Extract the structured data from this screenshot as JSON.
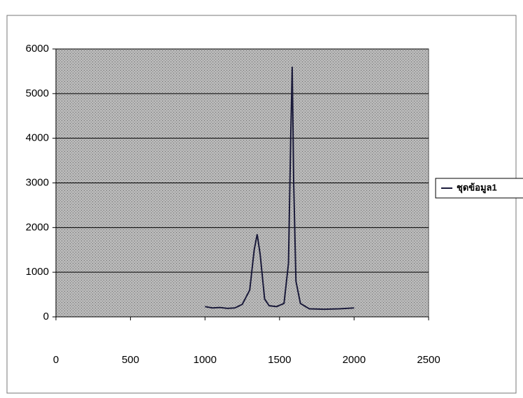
{
  "chart_data": {
    "type": "line",
    "x": [
      1000,
      1050,
      1100,
      1150,
      1200,
      1250,
      1300,
      1330,
      1350,
      1370,
      1400,
      1430,
      1480,
      1530,
      1560,
      1575,
      1585,
      1595,
      1610,
      1640,
      1700,
      1800,
      1900,
      2000
    ],
    "series": [
      {
        "name": "ชุดข้อมูล1",
        "color": "#1a1a3a",
        "values": [
          230,
          200,
          210,
          190,
          200,
          280,
          600,
          1500,
          1850,
          1400,
          400,
          250,
          230,
          300,
          1200,
          4000,
          5600,
          3000,
          800,
          300,
          180,
          170,
          180,
          200
        ]
      }
    ],
    "xlim": [
      0,
      2500
    ],
    "xticks": [
      0,
      500,
      1000,
      1500,
      2000,
      2500
    ],
    "ylim": [
      0,
      6000
    ],
    "yticks": [
      0,
      1000,
      2000,
      3000,
      4000,
      5000,
      6000
    ],
    "grid": true,
    "legend": "right"
  }
}
